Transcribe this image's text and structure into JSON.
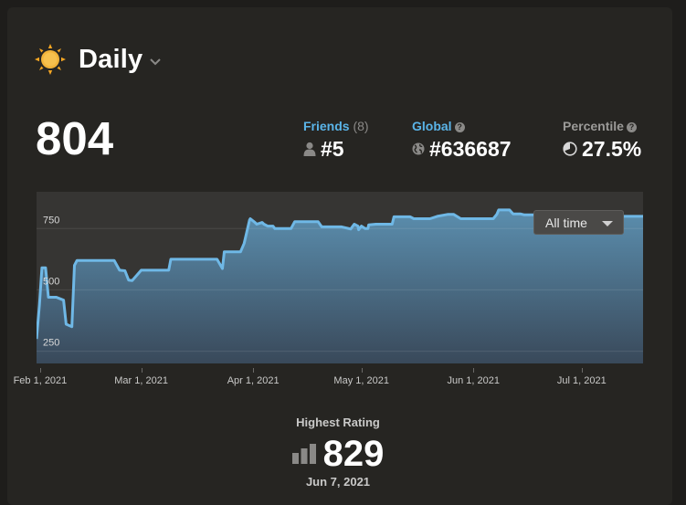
{
  "header": {
    "title": "Daily",
    "icon": "sun-icon",
    "accent": "#f5a623"
  },
  "rating": "804",
  "stats": {
    "friends": {
      "label": "Friends",
      "count": "(8)",
      "value": "#5",
      "color": "#5ab4e8"
    },
    "global": {
      "label": "Global",
      "value": "#636687",
      "color": "#5ab4e8"
    },
    "percentile": {
      "label": "Percentile",
      "value": "27.5%",
      "color": "#9b9a98"
    }
  },
  "range_select": {
    "value": "All time"
  },
  "chart_data": {
    "type": "area",
    "ylim": [
      200,
      900
    ],
    "y_ticks": [
      250,
      500,
      750
    ],
    "x_ticks": [
      {
        "label": "Feb 1, 2021",
        "day": 0
      },
      {
        "label": "Mar 1, 2021",
        "day": 28
      },
      {
        "label": "Apr 1, 2021",
        "day": 59
      },
      {
        "label": "May 1, 2021",
        "day": 89
      },
      {
        "label": "Jun 1, 2021",
        "day": 120
      },
      {
        "label": "Jul 1, 2021",
        "day": 150
      }
    ],
    "xlim": [
      -1,
      167
    ],
    "series": [
      {
        "color": "#6fb8e6",
        "x": [
          -1,
          -0.2,
          0.5,
          1.5,
          2.3,
          3.3,
          4.5,
          6.5,
          7.2,
          8.8,
          9.5,
          10.2,
          20.5,
          22,
          23.5,
          24.5,
          25.5,
          28,
          29,
          35.6,
          36.2,
          37.5,
          49,
          50.5,
          51,
          55.5,
          56.5,
          58,
          58.2,
          59.5,
          60,
          61.5,
          62,
          63,
          64.5,
          65,
          69.5,
          70.5,
          77,
          78,
          83.5,
          86,
          87,
          88,
          88.2,
          89,
          90,
          90.8,
          91,
          93,
          97.5,
          98,
          102.5,
          103.5,
          108,
          110,
          113,
          114.5,
          116.5,
          117,
          125.5,
          126.5,
          127,
          130,
          131,
          133,
          134,
          141,
          142.5,
          155,
          156,
          167
        ],
        "values": [
          300,
          440,
          590,
          590,
          470,
          470,
          470,
          458,
          360,
          350,
          600,
          620,
          620,
          580,
          578,
          540,
          538,
          580,
          580,
          580,
          625,
          625,
          625,
          587,
          655,
          655,
          690,
          785,
          790,
          775,
          768,
          775,
          768,
          760,
          760,
          750,
          750,
          778,
          778,
          757,
          757,
          748,
          768,
          760,
          745,
          760,
          750,
          750,
          765,
          768,
          768,
          798,
          798,
          790,
          790,
          800,
          808,
          808,
          790,
          790,
          790,
          808,
          826,
          826,
          810,
          810,
          806,
          806,
          808,
          808,
          800,
          800
        ]
      }
    ]
  },
  "highest": {
    "label": "Highest Rating",
    "value": "829",
    "date": "Jun 7, 2021"
  }
}
